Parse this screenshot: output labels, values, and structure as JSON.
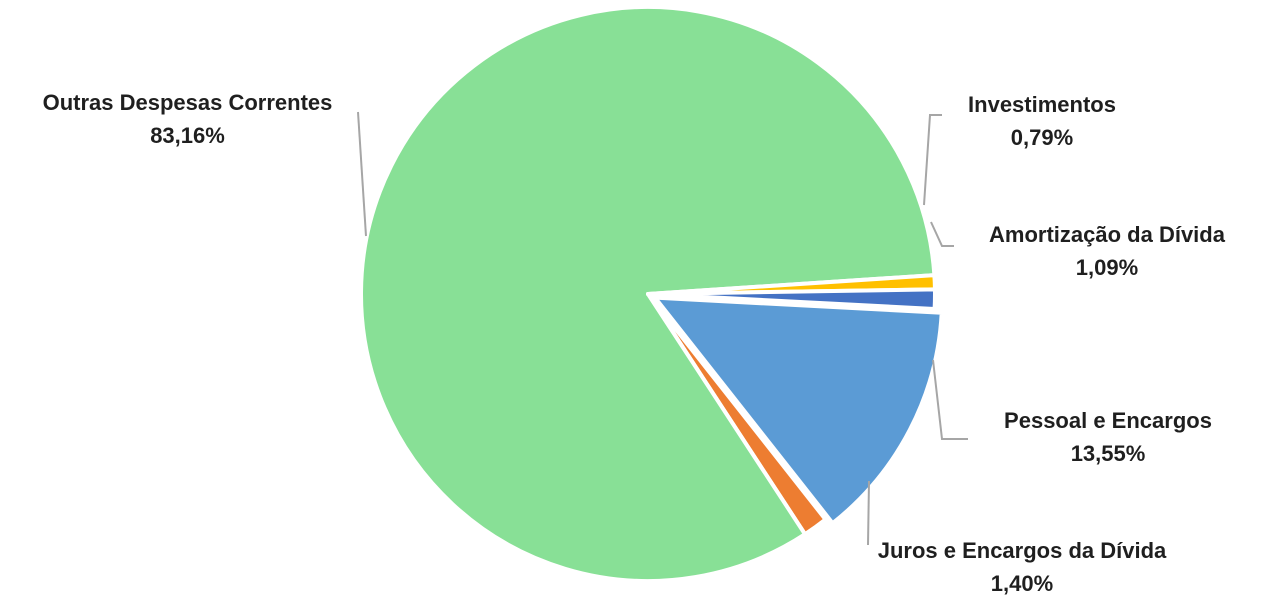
{
  "chart_data": {
    "type": "pie",
    "slices": [
      {
        "label": "Pessoal e Encargos",
        "value": 13.55,
        "display": "13,55%",
        "color": "#5B9BD5"
      },
      {
        "label": "Juros e Encargos da Dívida",
        "value": 1.4,
        "display": "1,40%",
        "color": "#ED7D31"
      },
      {
        "label": "Outras Despesas Correntes",
        "value": 83.16,
        "display": "83,16%",
        "color": "#88E096"
      },
      {
        "label": "Investimentos",
        "value": 0.79,
        "display": "0,79%",
        "color": "#FFC000"
      },
      {
        "label": "Amortização da Dívida",
        "value": 1.09,
        "display": "1,09%",
        "color": "#4472C4"
      }
    ],
    "start_angle_deg": 3,
    "exploded_slices": [
      "Pessoal e Encargos"
    ],
    "legend": "none",
    "data_labels": "outside-with-leader-lines"
  }
}
